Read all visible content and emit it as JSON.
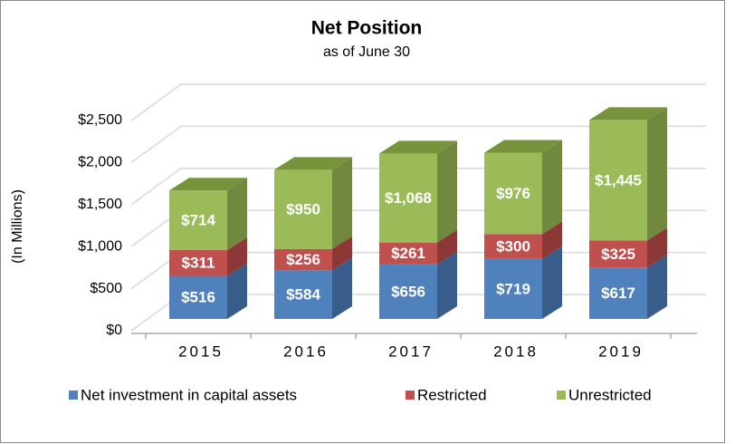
{
  "chart_data": {
    "type": "bar3d_stacked",
    "title": "Net Position",
    "subtitle": "as of June 30",
    "y_label": "(In Millions)",
    "categories": [
      "2015",
      "2016",
      "2017",
      "2018",
      "2019"
    ],
    "series": [
      {
        "name": "Net investment in capital assets",
        "color": "#4f81bd",
        "side_color": "#385d8a",
        "top_color": "#7a9fd0",
        "values": [
          516,
          584,
          656,
          719,
          617
        ],
        "value_labels": [
          "$516",
          "$584",
          "$656",
          "$719",
          "$617"
        ]
      },
      {
        "name": "Restricted",
        "color": "#c0504d",
        "side_color": "#8c3836",
        "top_color": "#d98583",
        "values": [
          311,
          256,
          261,
          300,
          325
        ],
        "value_labels": [
          "$311",
          "$256",
          "$261",
          "$300",
          "$325"
        ]
      },
      {
        "name": "Unrestricted",
        "color": "#9bbb59",
        "side_color": "#71893f",
        "top_color": "#77933c",
        "values": [
          714,
          950,
          1068,
          976,
          1445
        ],
        "value_labels": [
          "$714",
          "$950",
          "$1,068",
          "$976",
          "$1,445"
        ]
      }
    ],
    "ylim": [
      0,
      2500
    ],
    "yticks": [
      {
        "value": 0,
        "label": "$0"
      },
      {
        "value": 500,
        "label": "$500"
      },
      {
        "value": 1000,
        "label": "$1,000"
      },
      {
        "value": 1500,
        "label": "$1,500"
      },
      {
        "value": 2000,
        "label": "$2,000"
      },
      {
        "value": 2500,
        "label": "$2,500"
      }
    ],
    "grid": true,
    "legend": "bottom"
  }
}
